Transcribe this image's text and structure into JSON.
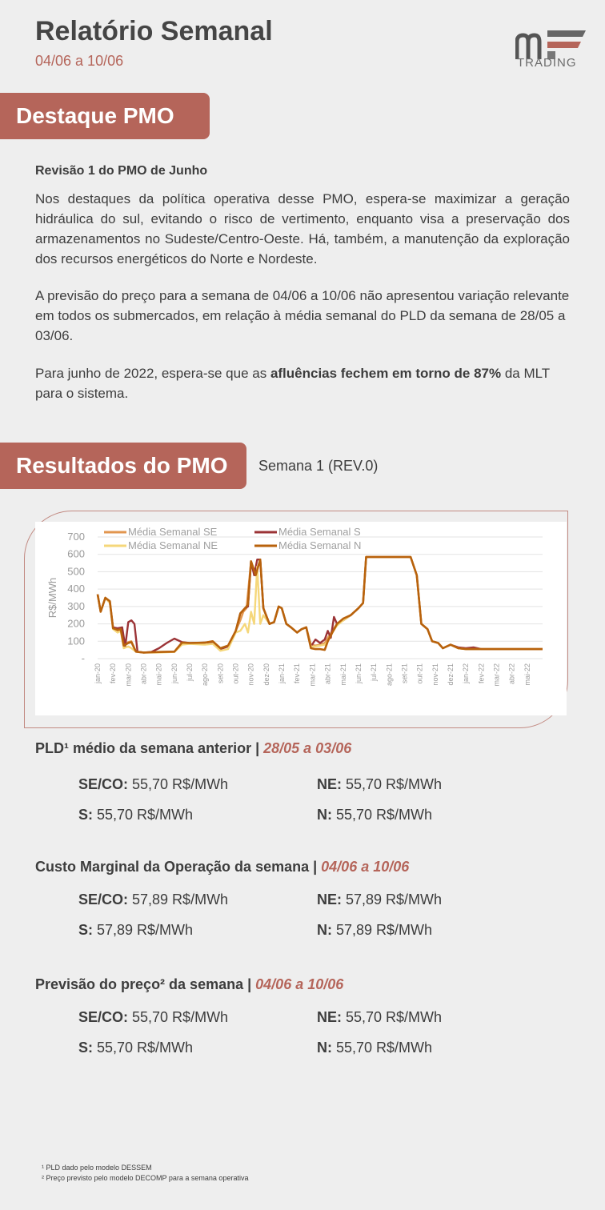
{
  "header": {
    "title": "Relatório Semanal",
    "date_range": "04/06 a 10/06",
    "logo_text": "TRADING"
  },
  "colors": {
    "accent": "#b5655a",
    "se": "#e2964f",
    "s": "#9b3336",
    "ne": "#f5d77a",
    "n": "#b8620c"
  },
  "destaque": {
    "tag": "Destaque PMO",
    "subtitle": "Revisão 1 do PMO de Junho",
    "p1": "Nos destaques da política operativa desse PMO, espera-se maximizar a geração hidráulica do sul, evitando o risco de vertimento, enquanto visa a preservação dos armazenamentos no Sudeste/Centro-Oeste. Há, também, a manutenção da exploração dos recursos energéticos do Norte e Nordeste.",
    "p2": "A previsão do preço para a semana de 04/06 a 10/06 não apresentou variação relevante em todos os submercados, em relação à média semanal do PLD da semana de 28/05 a 03/06.",
    "p3_a": "Para junho de 2022, espera-se que as ",
    "p3_b": "afluências fechem em torno de 87%",
    "p3_c": " da MLT para o sistema."
  },
  "resultados": {
    "tag": "Resultados do PMO",
    "sub": "Semana 1 (REV.0)"
  },
  "chart_data": {
    "type": "line",
    "ylabel": "R$/MWh",
    "ylim": [
      0,
      700
    ],
    "yticks": [
      "-",
      "100",
      "200",
      "300",
      "400",
      "500",
      "600",
      "700"
    ],
    "xticks": [
      "jan-20",
      "fev-20",
      "mar-20",
      "abr-20",
      "mai-20",
      "jun-20",
      "jul-20",
      "ago-20",
      "set-20",
      "out-20",
      "nov-20",
      "dez-20",
      "jan-21",
      "fev-21",
      "mar-21",
      "abr-21",
      "mai-21",
      "jun-21",
      "jul-21",
      "ago-21",
      "set-21",
      "out-21",
      "nov-21",
      "dez-21",
      "jan-22",
      "fev-22",
      "mar-22",
      "abr-22",
      "mai-22"
    ],
    "legend": [
      "Média Semanal SE",
      "Média Semanal S",
      "Média Semanal NE",
      "Média Semanal N"
    ],
    "series": [
      {
        "name": "Média Semanal SE",
        "points": [
          [
            0,
            370
          ],
          [
            0.2,
            270
          ],
          [
            0.5,
            350
          ],
          [
            0.8,
            330
          ],
          [
            1.0,
            180
          ],
          [
            1.3,
            160
          ],
          [
            1.5,
            170
          ],
          [
            1.7,
            70
          ],
          [
            2.0,
            95
          ],
          [
            2.2,
            100
          ],
          [
            2.5,
            40
          ],
          [
            3,
            35
          ],
          [
            4,
            38
          ],
          [
            5,
            40
          ],
          [
            5.5,
            90
          ],
          [
            6,
            88
          ],
          [
            7,
            92
          ],
          [
            7.5,
            100
          ],
          [
            8,
            60
          ],
          [
            8.5,
            70
          ],
          [
            9,
            160
          ],
          [
            9.3,
            220
          ],
          [
            9.5,
            270
          ],
          [
            9.7,
            290
          ],
          [
            10,
            560
          ],
          [
            10.3,
            480
          ],
          [
            10.6,
            570
          ],
          [
            10.8,
            290
          ],
          [
            11.2,
            200
          ],
          [
            11.5,
            210
          ],
          [
            11.8,
            300
          ],
          [
            12,
            290
          ],
          [
            12.3,
            200
          ],
          [
            12.6,
            180
          ],
          [
            13,
            150
          ],
          [
            13.3,
            170
          ],
          [
            13.6,
            180
          ],
          [
            13.9,
            80
          ],
          [
            14.2,
            75
          ],
          [
            14.5,
            80
          ],
          [
            14.8,
            90
          ],
          [
            15,
            120
          ],
          [
            15.3,
            160
          ],
          [
            15.6,
            200
          ],
          [
            16,
            220
          ],
          [
            16.5,
            250
          ],
          [
            17,
            290
          ],
          [
            17.3,
            320
          ],
          [
            17.5,
            585
          ],
          [
            18,
            585
          ],
          [
            19,
            585
          ],
          [
            20,
            585
          ],
          [
            20.4,
            585
          ],
          [
            20.8,
            480
          ],
          [
            21.1,
            200
          ],
          [
            21.5,
            170
          ],
          [
            21.8,
            100
          ],
          [
            22.2,
            90
          ],
          [
            22.5,
            60
          ],
          [
            23,
            80
          ],
          [
            23.5,
            60
          ],
          [
            24,
            55
          ],
          [
            25,
            55
          ],
          [
            26,
            55
          ],
          [
            27,
            55
          ],
          [
            28,
            55
          ],
          [
            29,
            55
          ]
        ]
      },
      {
        "name": "Média Semanal S",
        "points": [
          [
            0,
            370
          ],
          [
            0.2,
            270
          ],
          [
            0.5,
            350
          ],
          [
            0.8,
            320
          ],
          [
            1.0,
            180
          ],
          [
            1.3,
            175
          ],
          [
            1.6,
            180
          ],
          [
            1.8,
            70
          ],
          [
            2.0,
            210
          ],
          [
            2.2,
            220
          ],
          [
            2.4,
            200
          ],
          [
            2.6,
            40
          ],
          [
            3,
            35
          ],
          [
            3.5,
            38
          ],
          [
            4,
            60
          ],
          [
            4.5,
            90
          ],
          [
            5,
            115
          ],
          [
            5.5,
            95
          ],
          [
            6,
            90
          ],
          [
            7,
            92
          ],
          [
            7.5,
            95
          ],
          [
            8,
            55
          ],
          [
            8.5,
            70
          ],
          [
            9,
            160
          ],
          [
            9.3,
            260
          ],
          [
            9.6,
            290
          ],
          [
            9.8,
            300
          ],
          [
            10,
            560
          ],
          [
            10.2,
            480
          ],
          [
            10.4,
            570
          ],
          [
            10.6,
            570
          ],
          [
            10.8,
            290
          ],
          [
            11.2,
            200
          ],
          [
            11.5,
            210
          ],
          [
            11.8,
            300
          ],
          [
            12,
            290
          ],
          [
            12.3,
            200
          ],
          [
            12.6,
            180
          ],
          [
            13,
            150
          ],
          [
            13.3,
            170
          ],
          [
            13.6,
            180
          ],
          [
            13.9,
            70
          ],
          [
            14.2,
            110
          ],
          [
            14.5,
            90
          ],
          [
            14.8,
            110
          ],
          [
            15,
            160
          ],
          [
            15.2,
            120
          ],
          [
            15.4,
            240
          ],
          [
            15.6,
            200
          ],
          [
            16,
            220
          ],
          [
            16.5,
            250
          ],
          [
            17,
            290
          ],
          [
            17.3,
            320
          ],
          [
            17.5,
            585
          ],
          [
            18,
            585
          ],
          [
            19,
            585
          ],
          [
            20,
            585
          ],
          [
            20.4,
            585
          ],
          [
            20.8,
            480
          ],
          [
            21.1,
            200
          ],
          [
            21.5,
            170
          ],
          [
            21.8,
            100
          ],
          [
            22.2,
            90
          ],
          [
            22.5,
            60
          ],
          [
            23,
            80
          ],
          [
            23.5,
            65
          ],
          [
            24,
            60
          ],
          [
            24.5,
            65
          ],
          [
            25,
            55
          ],
          [
            26,
            55
          ],
          [
            27,
            55
          ],
          [
            28,
            55
          ],
          [
            29,
            55
          ]
        ]
      },
      {
        "name": "Média Semanal NE",
        "points": [
          [
            0,
            370
          ],
          [
            0.2,
            270
          ],
          [
            0.5,
            350
          ],
          [
            0.8,
            320
          ],
          [
            1.0,
            170
          ],
          [
            1.3,
            150
          ],
          [
            1.5,
            160
          ],
          [
            1.7,
            60
          ],
          [
            2.0,
            70
          ],
          [
            2.2,
            60
          ],
          [
            2.5,
            40
          ],
          [
            3,
            35
          ],
          [
            4,
            35
          ],
          [
            5,
            38
          ],
          [
            5.5,
            80
          ],
          [
            6,
            85
          ],
          [
            7,
            80
          ],
          [
            7.5,
            85
          ],
          [
            8,
            45
          ],
          [
            8.5,
            55
          ],
          [
            9,
            150
          ],
          [
            9.3,
            160
          ],
          [
            9.6,
            200
          ],
          [
            9.8,
            150
          ],
          [
            10,
            270
          ],
          [
            10.2,
            200
          ],
          [
            10.4,
            530
          ],
          [
            10.6,
            200
          ],
          [
            10.8,
            250
          ],
          [
            11.2,
            200
          ],
          [
            11.5,
            210
          ],
          [
            11.8,
            300
          ],
          [
            12,
            290
          ],
          [
            12.3,
            200
          ],
          [
            12.6,
            180
          ],
          [
            13,
            150
          ],
          [
            13.3,
            170
          ],
          [
            13.6,
            180
          ],
          [
            13.9,
            70
          ],
          [
            14.2,
            70
          ],
          [
            14.5,
            75
          ],
          [
            14.8,
            80
          ],
          [
            15,
            100
          ],
          [
            15.3,
            150
          ],
          [
            15.6,
            190
          ],
          [
            16,
            220
          ],
          [
            16.5,
            250
          ],
          [
            17,
            290
          ],
          [
            17.3,
            320
          ],
          [
            17.5,
            585
          ],
          [
            18,
            585
          ],
          [
            19,
            585
          ],
          [
            20,
            585
          ],
          [
            20.4,
            585
          ],
          [
            20.8,
            480
          ],
          [
            21.1,
            200
          ],
          [
            21.5,
            170
          ],
          [
            21.8,
            100
          ],
          [
            22.2,
            90
          ],
          [
            22.5,
            60
          ],
          [
            23,
            80
          ],
          [
            23.5,
            60
          ],
          [
            24,
            55
          ],
          [
            25,
            55
          ],
          [
            26,
            55
          ],
          [
            27,
            55
          ],
          [
            28,
            55
          ],
          [
            29,
            55
          ]
        ]
      },
      {
        "name": "Média Semanal N",
        "points": [
          [
            0,
            370
          ],
          [
            0.2,
            270
          ],
          [
            0.5,
            350
          ],
          [
            0.8,
            330
          ],
          [
            1.0,
            175
          ],
          [
            1.3,
            165
          ],
          [
            1.5,
            170
          ],
          [
            1.7,
            75
          ],
          [
            2.0,
            90
          ],
          [
            2.2,
            95
          ],
          [
            2.5,
            40
          ],
          [
            3,
            35
          ],
          [
            4,
            38
          ],
          [
            5,
            40
          ],
          [
            5.5,
            92
          ],
          [
            6,
            90
          ],
          [
            7,
            92
          ],
          [
            7.5,
            100
          ],
          [
            8,
            60
          ],
          [
            8.5,
            75
          ],
          [
            9,
            160
          ],
          [
            9.3,
            260
          ],
          [
            9.6,
            290
          ],
          [
            9.8,
            310
          ],
          [
            10,
            560
          ],
          [
            10.3,
            480
          ],
          [
            10.6,
            570
          ],
          [
            10.8,
            290
          ],
          [
            11.2,
            200
          ],
          [
            11.5,
            210
          ],
          [
            11.8,
            300
          ],
          [
            12,
            290
          ],
          [
            12.3,
            200
          ],
          [
            12.6,
            180
          ],
          [
            13,
            150
          ],
          [
            13.3,
            170
          ],
          [
            13.6,
            180
          ],
          [
            13.9,
            60
          ],
          [
            14.2,
            55
          ],
          [
            14.5,
            55
          ],
          [
            14.8,
            50
          ],
          [
            15,
            100
          ],
          [
            15.3,
            150
          ],
          [
            15.6,
            200
          ],
          [
            16,
            230
          ],
          [
            16.5,
            250
          ],
          [
            17,
            290
          ],
          [
            17.3,
            320
          ],
          [
            17.5,
            585
          ],
          [
            18,
            585
          ],
          [
            19,
            585
          ],
          [
            20,
            585
          ],
          [
            20.4,
            585
          ],
          [
            20.8,
            480
          ],
          [
            21.1,
            200
          ],
          [
            21.5,
            170
          ],
          [
            21.8,
            100
          ],
          [
            22.2,
            90
          ],
          [
            22.5,
            60
          ],
          [
            23,
            80
          ],
          [
            23.5,
            60
          ],
          [
            24,
            55
          ],
          [
            25,
            55
          ],
          [
            26,
            55
          ],
          [
            27,
            55
          ],
          [
            28,
            55
          ],
          [
            29,
            55
          ]
        ]
      }
    ]
  },
  "pld": {
    "head": "PLD¹ médio da semana anterior | ",
    "dates": "28/05 a 03/06",
    "sece_k": "SE/CO:",
    "sece_v": " 55,70 R$/MWh",
    "ne_k": "NE:",
    "ne_v": " 55,70 R$/MWh",
    "s_k": "S:",
    "s_v": " 55,70 R$/MWh",
    "n_k": "N:",
    "n_v": " 55,70 R$/MWh"
  },
  "cmo": {
    "head": "Custo Marginal da Operação da semana | ",
    "dates": "04/06 a 10/06",
    "sece_k": "SE/CO:",
    "sece_v": " 57,89 R$/MWh",
    "ne_k": "NE:",
    "ne_v": " 57,89 R$/MWh",
    "s_k": "S:",
    "s_v": " 57,89 R$/MWh",
    "n_k": "N:",
    "n_v": " 57,89 R$/MWh"
  },
  "previsao": {
    "head": "Previsão do preço² da semana | ",
    "dates": "04/06 a 10/06",
    "sece_k": "SE/CO:",
    "sece_v": " 55,70 R$/MWh",
    "ne_k": "NE:",
    "ne_v": " 55,70 R$/MWh",
    "s_k": "S:",
    "s_v": " 55,70 R$/MWh",
    "n_k": "N:",
    "n_v": " 55,70 R$/MWh"
  },
  "footnotes": {
    "f1": "¹ PLD dado pelo modelo DESSEM",
    "f2": "² Preço previsto pelo modelo DECOMP para a semana operativa"
  }
}
